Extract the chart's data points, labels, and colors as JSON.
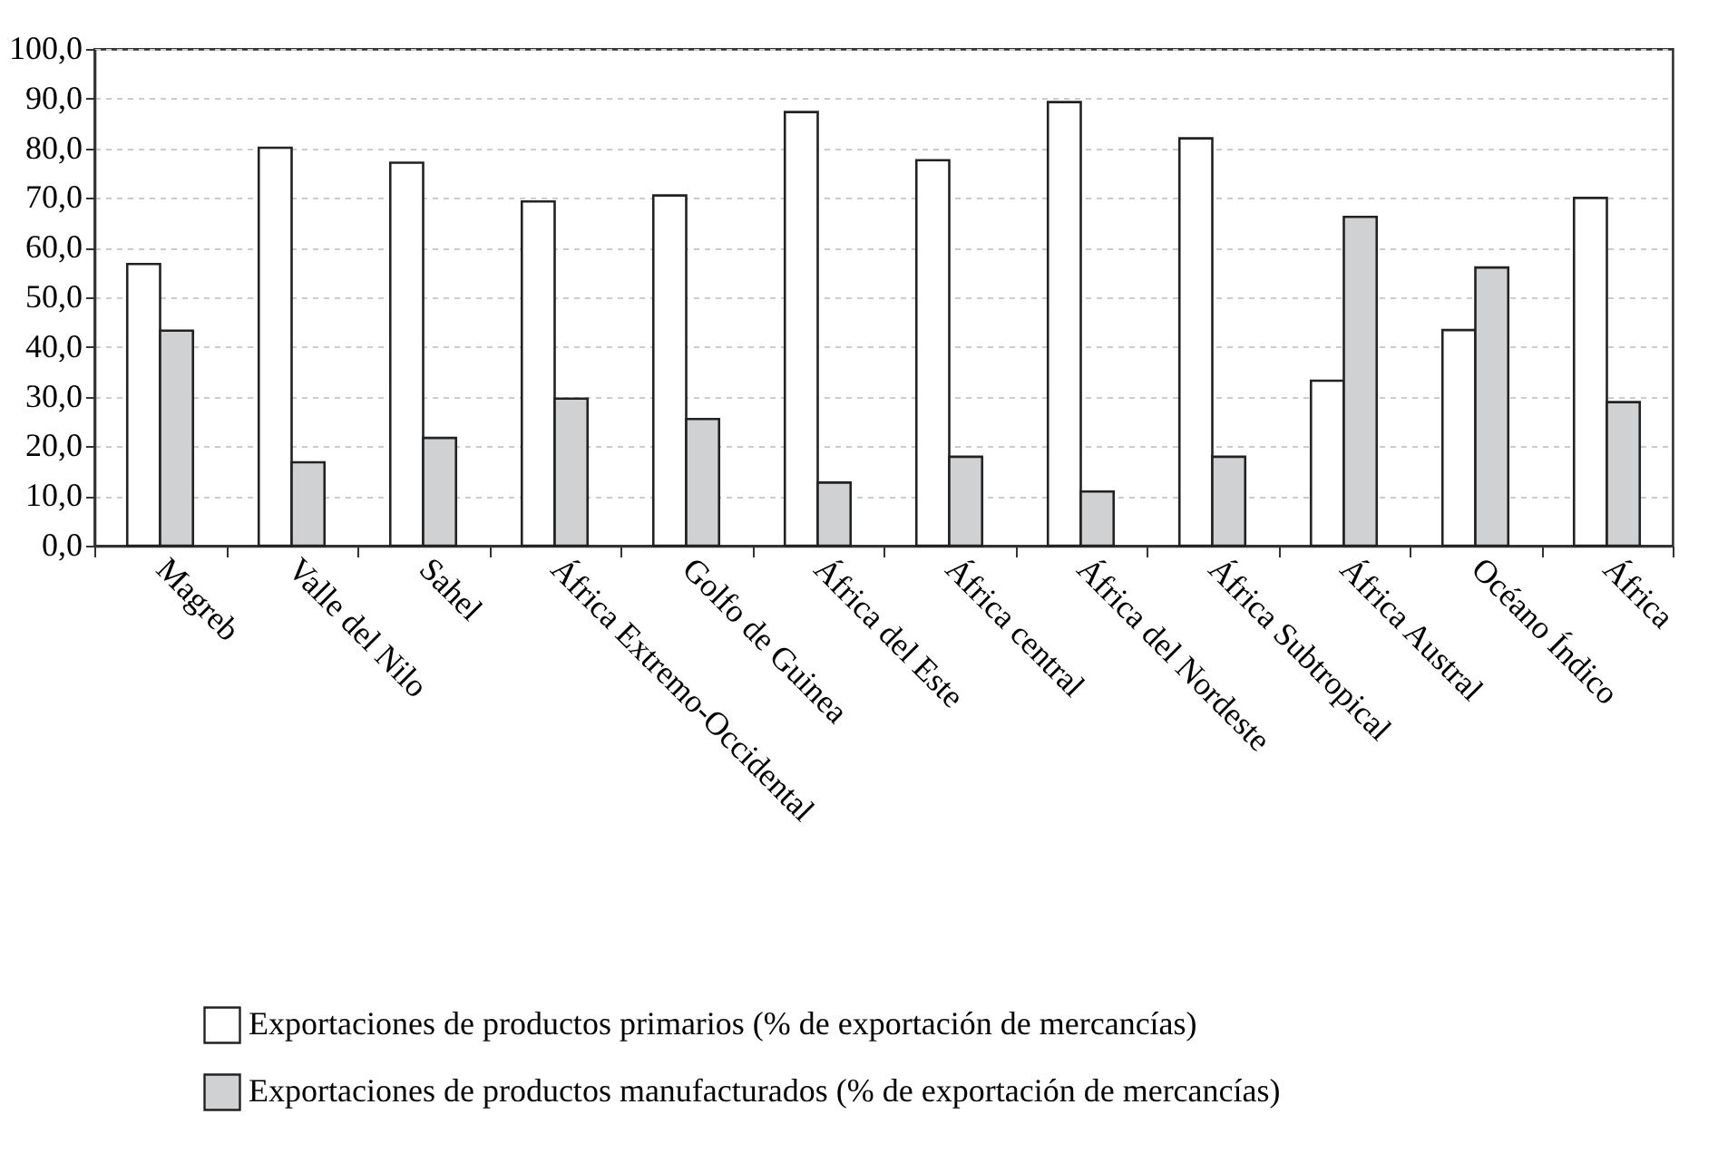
{
  "chart_data": {
    "type": "bar",
    "categories": [
      "Magreb",
      "Valle del Nilo",
      "Sahel",
      "África Extremo-Occidental",
      "Golfo de Guinea",
      "África del Este",
      "África central",
      "África del Nordeste",
      "África Subtropical",
      "África Austral",
      "Océano Índico",
      "África"
    ],
    "series": [
      {
        "name": "Exportaciones de productos primarios (% de exportación de mercancías)",
        "color": "#ffffff",
        "values": [
          56.7,
          80.1,
          77.1,
          69.3,
          70.5,
          87.3,
          77.6,
          89.3,
          82.0,
          33.2,
          43.4,
          70.0
        ]
      },
      {
        "name": "Exportaciones de productos manufacturados (% de exportación de mercancías)",
        "color": "#d0d1d3",
        "values": [
          43.3,
          16.8,
          21.7,
          29.6,
          25.5,
          12.7,
          17.9,
          10.9,
          17.9,
          66.2,
          56.0,
          28.9
        ]
      }
    ],
    "ylim": [
      0,
      100
    ],
    "yticks": [
      {
        "value": 0,
        "label": "0,0"
      },
      {
        "value": 10,
        "label": "10,0"
      },
      {
        "value": 20,
        "label": "20,0"
      },
      {
        "value": 30,
        "label": "30,0"
      },
      {
        "value": 40,
        "label": "40,0"
      },
      {
        "value": 50,
        "label": "50,0"
      },
      {
        "value": 60,
        "label": "60,0"
      },
      {
        "value": 70,
        "label": "70,0"
      },
      {
        "value": 80,
        "label": "80,0"
      },
      {
        "value": 90,
        "label": "90,0"
      },
      {
        "value": 100,
        "label": "100,0"
      }
    ],
    "grid": "y",
    "legend": "bottom left"
  }
}
